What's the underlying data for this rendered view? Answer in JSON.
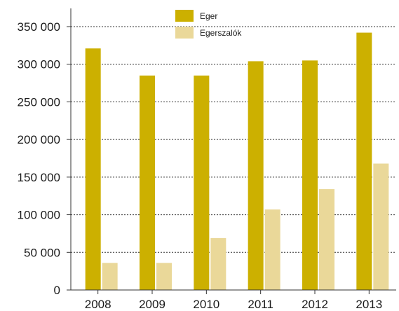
{
  "chart_data": {
    "type": "bar",
    "categories": [
      "2008",
      "2009",
      "2010",
      "2011",
      "2012",
      "2013"
    ],
    "series": [
      {
        "name": "Eger",
        "color": "#CCB000",
        "values": [
          321000,
          285000,
          285000,
          304000,
          305000,
          342000
        ]
      },
      {
        "name": "Egerszalók",
        "color": "#EAD899",
        "values": [
          36000,
          36000,
          69000,
          107000,
          134000,
          168000
        ]
      }
    ],
    "y_ticks": [
      {
        "value": 0,
        "label": "0"
      },
      {
        "value": 50000,
        "label": "50 000"
      },
      {
        "value": 100000,
        "label": "100 000"
      },
      {
        "value": 150000,
        "label": "150 000"
      },
      {
        "value": 200000,
        "label": "200 000"
      },
      {
        "value": 250000,
        "label": "250 000"
      },
      {
        "value": 300000,
        "label": "300 000"
      },
      {
        "value": 350000,
        "label": "350 000"
      }
    ],
    "ylim": [
      0,
      350000
    ],
    "grid": true,
    "legend_position": "top-center"
  }
}
